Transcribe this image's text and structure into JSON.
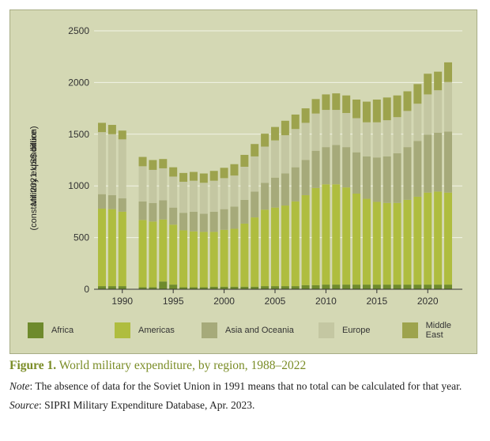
{
  "chart_data": {
    "type": "bar",
    "stacked": true,
    "ylabel_line1": "Military expenditure",
    "ylabel_line2": "(constant 2021 US$ billion)",
    "xlabel": "",
    "ylim": [
      0,
      2500
    ],
    "yticks": [
      0,
      500,
      1000,
      1500,
      2000,
      2500
    ],
    "xticks": [
      1990,
      1995,
      2000,
      2005,
      2010,
      2015,
      2020
    ],
    "grid": true,
    "legend_position": "bottom",
    "x": [
      1988,
      1989,
      1990,
      1991,
      1992,
      1993,
      1994,
      1995,
      1996,
      1997,
      1998,
      1999,
      2000,
      2001,
      2002,
      2003,
      2004,
      2005,
      2006,
      2007,
      2008,
      2009,
      2010,
      2011,
      2012,
      2013,
      2014,
      2015,
      2016,
      2017,
      2018,
      2019,
      2020,
      2021,
      2022
    ],
    "series": [
      {
        "name": "Africa",
        "color": "#6e8a2c",
        "values": [
          30,
          30,
          30,
          null,
          20,
          20,
          75,
          45,
          20,
          20,
          20,
          25,
          25,
          25,
          25,
          25,
          30,
          30,
          30,
          30,
          40,
          40,
          45,
          45,
          45,
          45,
          45,
          45,
          45,
          45,
          45,
          45,
          45,
          45,
          45
        ]
      },
      {
        "name": "Americas",
        "color": "#afbd3f",
        "values": [
          750,
          745,
          720,
          null,
          650,
          635,
          600,
          580,
          550,
          540,
          535,
          530,
          550,
          560,
          610,
          670,
          740,
          760,
          780,
          820,
          870,
          940,
          970,
          970,
          940,
          880,
          830,
          800,
          790,
          790,
          820,
          850,
          890,
          900,
          890
        ]
      },
      {
        "name": "Asia and Oceania",
        "color": "#a6aa7a",
        "values": [
          140,
          135,
          130,
          null,
          180,
          180,
          185,
          165,
          170,
          190,
          175,
          195,
          200,
          215,
          230,
          250,
          260,
          290,
          310,
          330,
          340,
          360,
          360,
          380,
          390,
          400,
          410,
          430,
          450,
          480,
          510,
          540,
          560,
          570,
          590
        ]
      },
      {
        "name": "Europe",
        "color": "#c4c7a2",
        "values": [
          600,
          590,
          570,
          null,
          340,
          320,
          310,
          300,
          300,
          300,
          300,
          300,
          300,
          300,
          320,
          340,
          350,
          360,
          370,
          370,
          360,
          360,
          360,
          340,
          330,
          330,
          330,
          340,
          350,
          350,
          350,
          360,
          390,
          410,
          480
        ]
      },
      {
        "name": "Middle East",
        "color": "#9da34d",
        "values": [
          90,
          90,
          85,
          null,
          90,
          95,
          90,
          90,
          85,
          85,
          90,
          95,
          100,
          110,
          115,
          120,
          125,
          130,
          140,
          140,
          140,
          140,
          150,
          160,
          170,
          180,
          200,
          220,
          220,
          210,
          190,
          190,
          200,
          180,
          190
        ]
      }
    ]
  },
  "caption": {
    "figure_label": "Figure 1.",
    "figure_title": " World military expenditure, by region, 1988–2022",
    "note_label": "Note",
    "note_text": ": The absence of data for the Soviet Union in 1991 means that no total can be calculated for that year.",
    "source_label": "Source",
    "source_text": ": SIPRI Military Expenditure Database, Apr. 2023."
  }
}
